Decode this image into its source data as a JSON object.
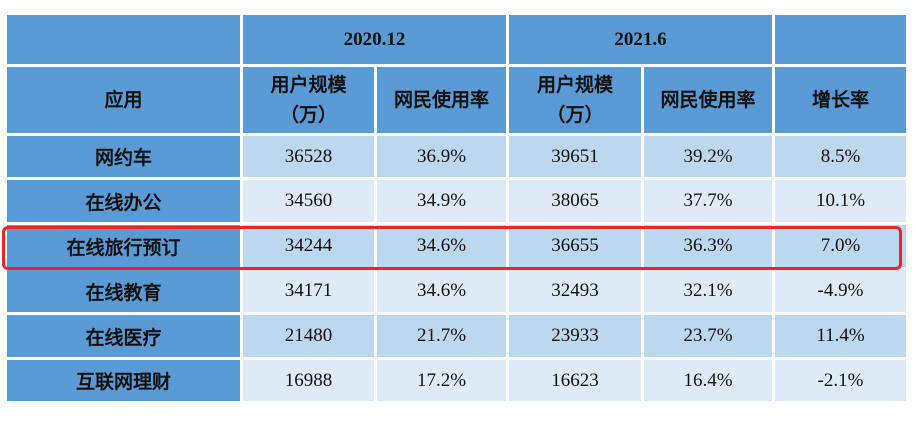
{
  "table": {
    "periods": [
      "2020.12",
      "2021.6"
    ],
    "app_header": "应用",
    "users_header_line1": "用户规模",
    "users_header_line2": "（万）",
    "rate_header": "网民使用率",
    "growth_header": "增长率",
    "rows": [
      {
        "app": "网约车",
        "users_2020": "36528",
        "rate_2020": "36.9%",
        "users_2021": "39651",
        "rate_2021": "39.2%",
        "growth": "8.5%"
      },
      {
        "app": "在线办公",
        "users_2020": "34560",
        "rate_2020": "34.9%",
        "users_2021": "38065",
        "rate_2021": "37.7%",
        "growth": "10.1%"
      },
      {
        "app": "在线旅行预订",
        "users_2020": "34244",
        "rate_2020": "34.6%",
        "users_2021": "36655",
        "rate_2021": "36.3%",
        "growth": "7.0%"
      },
      {
        "app": "在线教育",
        "users_2020": "34171",
        "rate_2020": "34.6%",
        "users_2021": "32493",
        "rate_2021": "32.1%",
        "growth": "-4.9%"
      },
      {
        "app": "在线医疗",
        "users_2020": "21480",
        "rate_2020": "21.7%",
        "users_2021": "23933",
        "rate_2021": "23.7%",
        "growth": "11.4%"
      },
      {
        "app": "互联网理财",
        "users_2020": "16988",
        "rate_2020": "17.2%",
        "users_2021": "16623",
        "rate_2021": "16.4%",
        "growth": "-2.1%"
      }
    ],
    "highlight_color": "#e8262a",
    "header_color": "#5b9bd5",
    "row_color_dark": "#bdd7ee",
    "row_color_light": "#deebf7"
  }
}
